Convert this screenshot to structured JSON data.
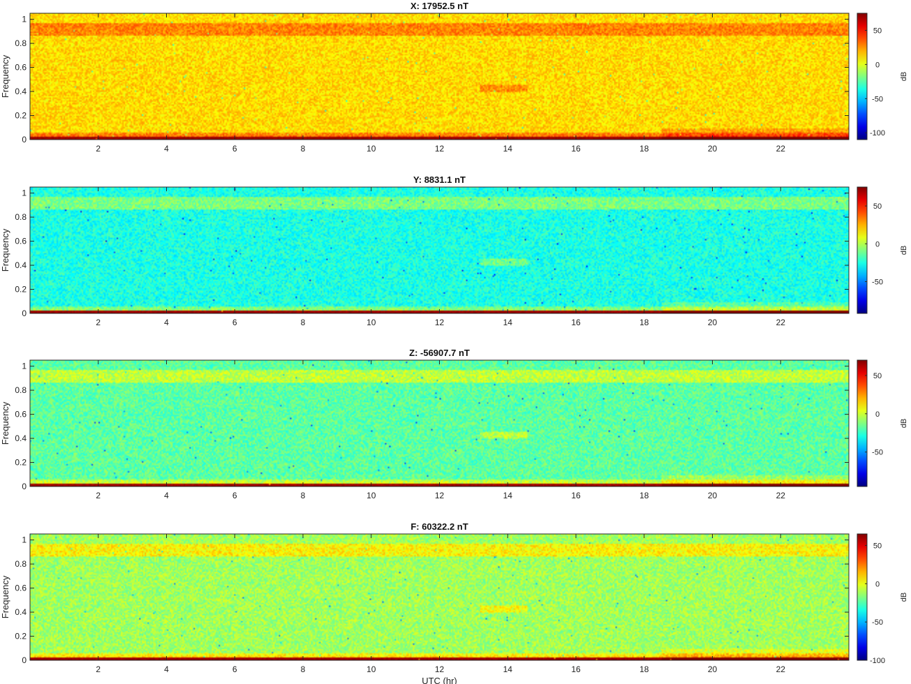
{
  "chart_data": [
    {
      "type": "heatmap",
      "title": "X: 17952.5 nT",
      "ylabel": "Frequency",
      "xlabel": "",
      "x_ticks": [
        "2",
        "4",
        "6",
        "8",
        "10",
        "12",
        "14",
        "16",
        "18",
        "20",
        "22"
      ],
      "y_ticks": [
        "0",
        "0.2",
        "0.4",
        "0.6",
        "0.8",
        "1"
      ],
      "xlim": [
        0,
        24
      ],
      "ylim": [
        0,
        1.05
      ],
      "colorbar": {
        "label": "dB",
        "range": [
          -110,
          75
        ],
        "ticks": [
          "50",
          "0",
          "-50",
          "-100"
        ],
        "tick_values": [
          50,
          0,
          -50,
          -100
        ]
      },
      "base_level_db": 12,
      "colormap": "jet"
    },
    {
      "type": "heatmap",
      "title": "Y: 8831.1 nT",
      "ylabel": "Frequency",
      "xlabel": "",
      "x_ticks": [
        "2",
        "4",
        "6",
        "8",
        "10",
        "12",
        "14",
        "16",
        "18",
        "20",
        "22"
      ],
      "y_ticks": [
        "0",
        "0.2",
        "0.4",
        "0.6",
        "0.8",
        "1"
      ],
      "xlim": [
        0,
        24
      ],
      "ylim": [
        0,
        1.05
      ],
      "colorbar": {
        "label": "dB",
        "range": [
          -92,
          75
        ],
        "ticks": [
          "50",
          "0",
          "-50"
        ],
        "tick_values": [
          50,
          0,
          -50
        ]
      },
      "base_level_db": -25,
      "colormap": "jet"
    },
    {
      "type": "heatmap",
      "title": "Z: -56907.7 nT",
      "ylabel": "Frequency",
      "xlabel": "",
      "x_ticks": [
        "2",
        "4",
        "6",
        "8",
        "10",
        "12",
        "14",
        "16",
        "18",
        "20",
        "22"
      ],
      "y_ticks": [
        "0",
        "0.2",
        "0.4",
        "0.6",
        "0.8",
        "1"
      ],
      "xlim": [
        0,
        24
      ],
      "ylim": [
        0,
        1.05
      ],
      "colorbar": {
        "label": "dB",
        "range": [
          -95,
          70
        ],
        "ticks": [
          "50",
          "0",
          "-50"
        ],
        "tick_values": [
          50,
          0,
          -50
        ]
      },
      "base_level_db": -18,
      "colormap": "jet"
    },
    {
      "type": "heatmap",
      "title": "F: 60322.2 nT",
      "ylabel": "Frequency",
      "xlabel": "UTC (hr)",
      "x_ticks": [
        "2",
        "4",
        "6",
        "8",
        "10",
        "12",
        "14",
        "16",
        "18",
        "20",
        "22"
      ],
      "y_ticks": [
        "0",
        "0.2",
        "0.4",
        "0.6",
        "0.8",
        "1"
      ],
      "xlim": [
        0,
        24
      ],
      "ylim": [
        0,
        1.05
      ],
      "colorbar": {
        "label": "dB",
        "range": [
          -100,
          65
        ],
        "ticks": [
          "50",
          "0",
          "-50",
          "-100"
        ],
        "tick_values": [
          50,
          0,
          -50,
          -100
        ]
      },
      "base_level_db": -12,
      "colormap": "jet"
    }
  ]
}
